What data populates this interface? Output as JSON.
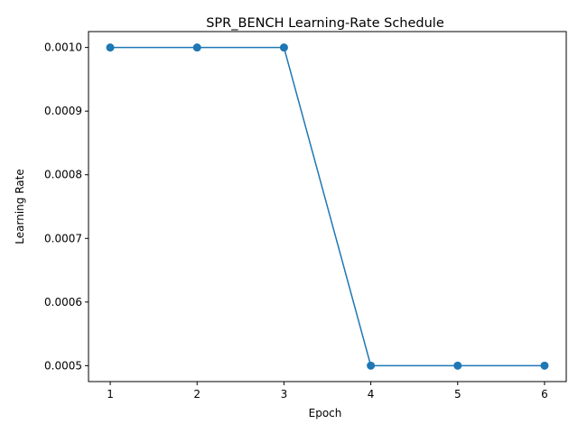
{
  "chart_data": {
    "type": "line",
    "title": "SPR_BENCH Learning-Rate Schedule",
    "xlabel": "Epoch",
    "ylabel": "Learning Rate",
    "x": [
      1,
      2,
      3,
      4,
      5,
      6
    ],
    "series": [
      {
        "values": [
          0.001,
          0.001,
          0.001,
          0.0005,
          0.0005,
          0.0005
        ],
        "color": "#1f77b4"
      }
    ],
    "xticks": [
      1,
      2,
      3,
      4,
      5,
      6
    ],
    "xtick_labels": [
      "1",
      "2",
      "3",
      "4",
      "5",
      "6"
    ],
    "yticks": [
      0.0005,
      0.0006,
      0.0007,
      0.0008,
      0.0009,
      0.001
    ],
    "ytick_labels": [
      "0.0005",
      "0.0006",
      "0.0007",
      "0.0008",
      "0.0009",
      "0.0010"
    ],
    "xlim": [
      0.75,
      6.25
    ],
    "ylim": [
      0.000475,
      0.001025
    ],
    "grid": false,
    "legend": false
  }
}
